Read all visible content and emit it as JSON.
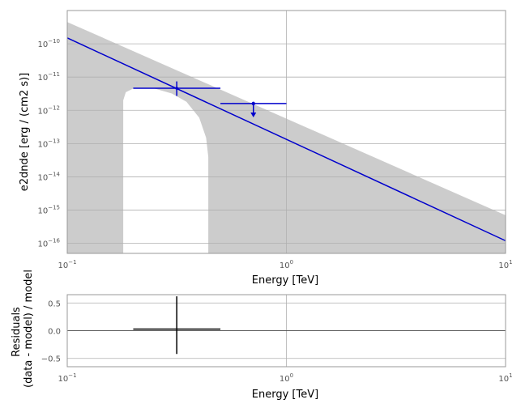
{
  "chart_data": [
    {
      "type": "line",
      "scale": {
        "x": "log",
        "y": "log"
      },
      "xlabel": "Energy [TeV]",
      "ylabel": "e2dnde [erg / (cm2 s)]",
      "xlim": [
        0.1,
        10
      ],
      "ylim": [
        5e-17,
        1e-09
      ],
      "x_ticks": [
        {
          "value": 0.1,
          "base": "10",
          "exp": "−1"
        },
        {
          "value": 1,
          "base": "10",
          "exp": "0"
        },
        {
          "value": 10,
          "base": "10",
          "exp": "1"
        }
      ],
      "y_ticks": [
        {
          "value": 1e-10,
          "base": "10",
          "exp": "−10"
        },
        {
          "value": 1e-11,
          "base": "10",
          "exp": "−11"
        },
        {
          "value": 1e-12,
          "base": "10",
          "exp": "−12"
        },
        {
          "value": 1e-13,
          "base": "10",
          "exp": "−13"
        },
        {
          "value": 1e-14,
          "base": "10",
          "exp": "−14"
        },
        {
          "value": 1e-15,
          "base": "10",
          "exp": "−15"
        },
        {
          "value": 1e-16,
          "base": "10",
          "exp": "−16"
        }
      ],
      "grid": true,
      "model_line": {
        "x": [
          0.1,
          10
        ],
        "y": [
          1.5e-10,
          1.2e-16
        ],
        "color": "#0000cc"
      },
      "error_band": {
        "color": "#cccccc",
        "upper": {
          "x": [
            0.1,
            10
          ],
          "y": [
            4.5e-10,
            7e-16
          ]
        },
        "lower": {
          "x": [
            0.1,
            0.18,
            0.18,
            0.185,
            0.2,
            0.25,
            0.3,
            0.35,
            0.4,
            0.43,
            0.44,
            0.44,
            0.55,
            1,
            10
          ],
          "y": [
            5e-17,
            5e-17,
            2e-12,
            3.5e-12,
            4.5e-12,
            4.5e-12,
            3.2e-12,
            1.8e-12,
            6e-13,
            1.5e-13,
            4e-14,
            5e-17,
            5e-17,
            5e-17,
            5e-17
          ]
        }
      },
      "flux_points": [
        {
          "x": 0.316,
          "y": 4.6e-12,
          "x_lo": 0.2,
          "x_hi": 0.5,
          "y_lo": 2.7e-12,
          "y_hi": 7.4e-12,
          "upper_limit": false,
          "color": "#0000cc"
        },
        {
          "x": 0.707,
          "y": 1.6e-12,
          "x_lo": 0.5,
          "x_hi": 1.0,
          "upper_limit": true,
          "ul_tip": 6.5e-13,
          "color": "#0000cc"
        }
      ]
    },
    {
      "type": "scatter",
      "scale": {
        "x": "log",
        "y": "linear"
      },
      "xlabel": "Energy [TeV]",
      "ylabel": [
        "Residuals",
        "(data - model) / model"
      ],
      "xlim": [
        0.1,
        10
      ],
      "ylim": [
        -0.65,
        0.65
      ],
      "x_ticks": [
        {
          "value": 0.1,
          "base": "10",
          "exp": "−1"
        },
        {
          "value": 1,
          "base": "10",
          "exp": "0"
        },
        {
          "value": 10,
          "base": "10",
          "exp": "1"
        }
      ],
      "y_ticks": [
        {
          "value": 0.5,
          "label": "0.5"
        },
        {
          "value": 0.0,
          "label": "0.0"
        },
        {
          "value": -0.5,
          "label": "−0.5"
        }
      ],
      "grid": true,
      "zero_line": 0,
      "points": [
        {
          "x": 0.316,
          "y": 0.03,
          "x_lo": 0.2,
          "x_hi": 0.5,
          "y_lo": -0.42,
          "y_hi": 0.62,
          "color": "#000000"
        }
      ]
    }
  ]
}
